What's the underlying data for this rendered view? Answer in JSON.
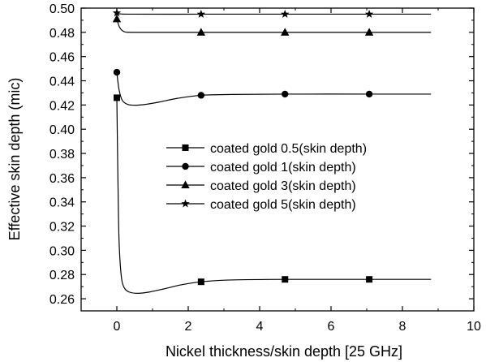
{
  "chart_data": {
    "type": "line",
    "title": "",
    "xlabel": "Nickel thickness/skin depth [25 GHz]",
    "ylabel": "Effective skin depth (mic)",
    "xlim": [
      -1,
      10
    ],
    "ylim": [
      0.25,
      0.5
    ],
    "xticks": [
      "0",
      "2",
      "4",
      "6",
      "8",
      "10"
    ],
    "yticks": [
      "0.26",
      "0.28",
      "0.30",
      "0.32",
      "0.34",
      "0.36",
      "0.38",
      "0.40",
      "0.42",
      "0.44",
      "0.46",
      "0.48",
      "0.50"
    ],
    "legend_position": "center-right",
    "grid": false,
    "series": [
      {
        "name": "coated gold 0.5(skin depth)",
        "marker": "square",
        "points": [
          [
            0,
            0.426
          ],
          [
            2.36,
            0.274
          ],
          [
            4.71,
            0.276
          ],
          [
            7.07,
            0.276
          ]
        ],
        "curve": [
          [
            0,
            0.426
          ],
          [
            0.03,
            0.36
          ],
          [
            0.06,
            0.31
          ],
          [
            0.12,
            0.28
          ],
          [
            0.2,
            0.2695
          ],
          [
            0.35,
            0.2655
          ],
          [
            0.6,
            0.2645
          ],
          [
            0.9,
            0.2655
          ],
          [
            1.3,
            0.268
          ],
          [
            1.8,
            0.2715
          ],
          [
            2.36,
            0.274
          ],
          [
            3.2,
            0.2755
          ],
          [
            4.71,
            0.276
          ],
          [
            7.07,
            0.276
          ],
          [
            8.8,
            0.276
          ]
        ]
      },
      {
        "name": "coated gold 1(skin depth)",
        "marker": "circle",
        "points": [
          [
            0,
            0.447
          ],
          [
            2.36,
            0.428
          ],
          [
            4.71,
            0.429
          ],
          [
            7.07,
            0.429
          ]
        ],
        "curve": [
          [
            0,
            0.447
          ],
          [
            0.06,
            0.433
          ],
          [
            0.15,
            0.424
          ],
          [
            0.3,
            0.4205
          ],
          [
            0.5,
            0.4198
          ],
          [
            0.8,
            0.4205
          ],
          [
            1.2,
            0.4225
          ],
          [
            1.7,
            0.4255
          ],
          [
            2.36,
            0.428
          ],
          [
            3.2,
            0.4287
          ],
          [
            4.71,
            0.429
          ],
          [
            7.07,
            0.429
          ],
          [
            8.8,
            0.429
          ]
        ]
      },
      {
        "name": "coated gold 3(skin depth)",
        "marker": "triangle",
        "points": [
          [
            0,
            0.491
          ],
          [
            2.36,
            0.48
          ],
          [
            4.71,
            0.48
          ],
          [
            7.07,
            0.48
          ]
        ],
        "curve": [
          [
            0,
            0.491
          ],
          [
            0.08,
            0.484
          ],
          [
            0.2,
            0.4806
          ],
          [
            0.4,
            0.48
          ],
          [
            1,
            0.48
          ],
          [
            2.36,
            0.48
          ],
          [
            4.71,
            0.48
          ],
          [
            7.07,
            0.48
          ],
          [
            8.8,
            0.48
          ]
        ]
      },
      {
        "name": "coated gold 5(skin depth)",
        "marker": "star",
        "points": [
          [
            0,
            0.496
          ],
          [
            2.36,
            0.495
          ],
          [
            4.71,
            0.495
          ],
          [
            7.07,
            0.495
          ]
        ],
        "curve": [
          [
            0,
            0.496
          ],
          [
            0.3,
            0.495
          ],
          [
            2.36,
            0.495
          ],
          [
            4.71,
            0.495
          ],
          [
            7.07,
            0.495
          ],
          [
            8.8,
            0.495
          ]
        ]
      }
    ]
  }
}
